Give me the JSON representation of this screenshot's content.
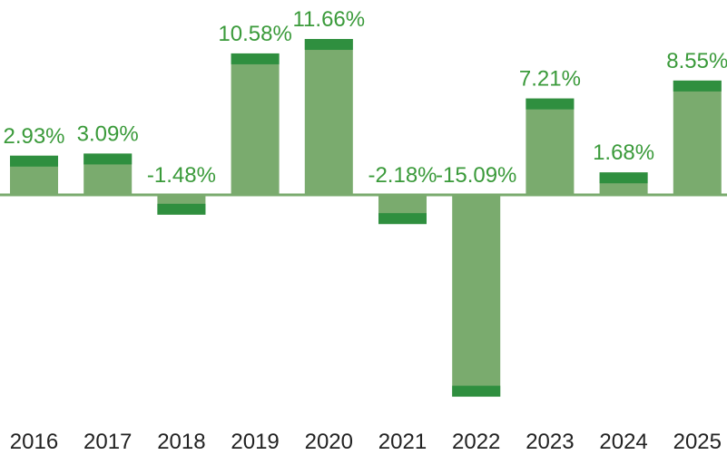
{
  "chart_data": {
    "type": "bar",
    "title": "",
    "xlabel": "",
    "ylabel": "",
    "categories": [
      "2016",
      "2017",
      "2018",
      "2019",
      "2020",
      "2021",
      "2022",
      "2023",
      "2024",
      "2025"
    ],
    "values": [
      2.93,
      3.09,
      -1.48,
      10.58,
      11.66,
      -2.18,
      -15.09,
      7.21,
      1.68,
      8.55
    ],
    "value_labels": [
      "2.93%",
      "3.09%",
      "-1.48%",
      "10.58%",
      "11.66%",
      "-2.18%",
      "-15.09%",
      "7.21%",
      "1.68%",
      "8.55%"
    ],
    "ylim": [
      -15.09,
      11.66
    ],
    "grid": false,
    "legend": "none",
    "colors": {
      "bar_fill": "#7aab6e",
      "bar_cap": "#2f8f3f",
      "value_label": "#3a9a3a",
      "axis_line": "#7aab6e",
      "x_label": "#222222"
    }
  }
}
